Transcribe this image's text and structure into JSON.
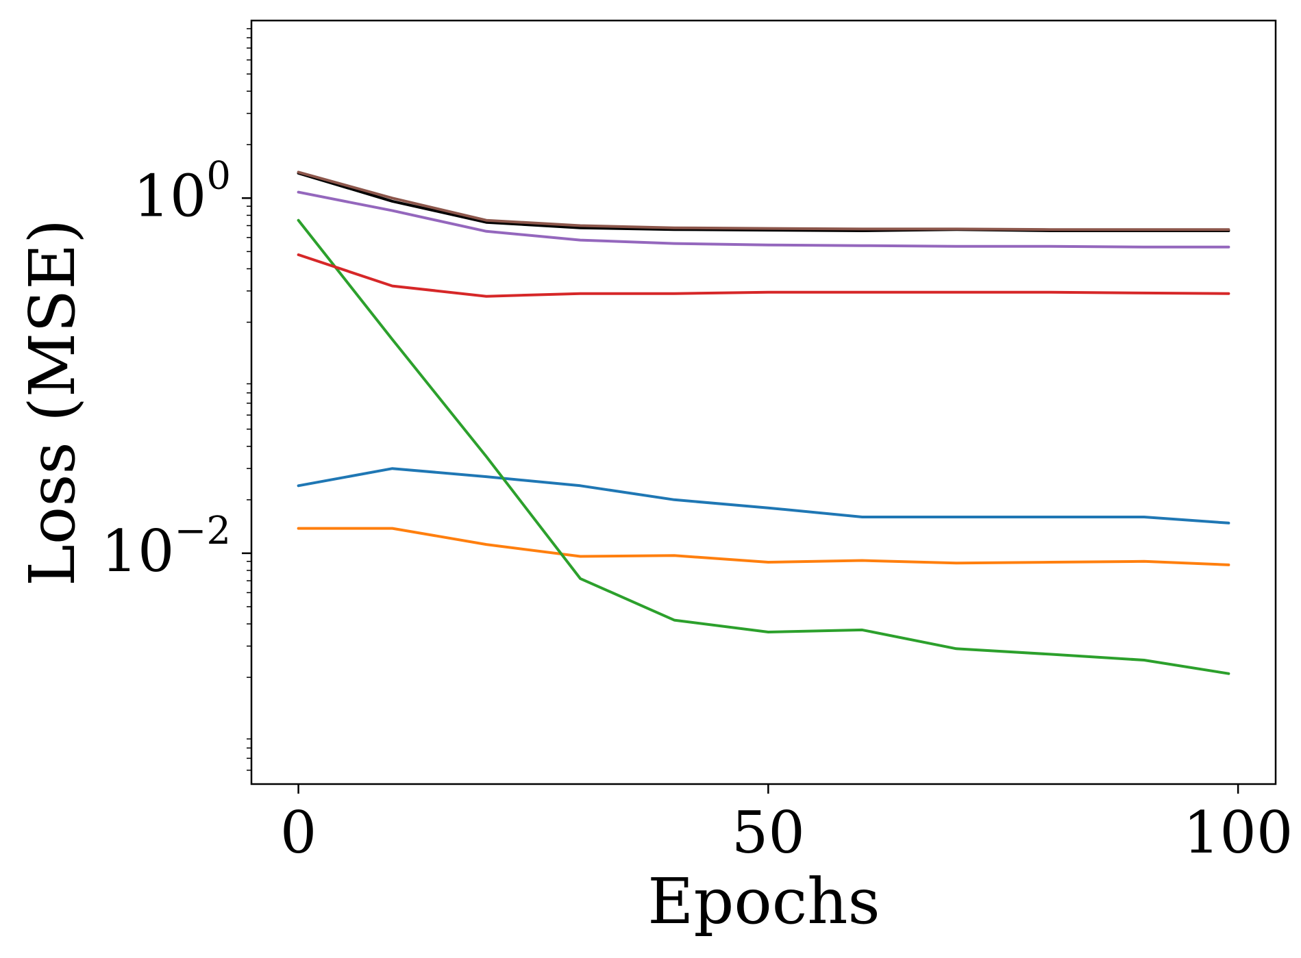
{
  "chart_data": {
    "type": "line",
    "title": "",
    "xlabel": "Epochs",
    "ylabel": "Loss (MSE)",
    "xscale": "linear",
    "yscale": "log",
    "xlim": [
      -5,
      104
    ],
    "ylim_exp": [
      -3.3,
      1.0
    ],
    "grid": false,
    "legend": "none",
    "xticks": [
      {
        "value": 0,
        "label": "0"
      },
      {
        "value": 50,
        "label": "50"
      },
      {
        "value": 100,
        "label": "100"
      }
    ],
    "yticks": [
      {
        "exp": 0,
        "base": "10",
        "sup": "0"
      },
      {
        "exp": -2,
        "base": "10",
        "sup": "−2"
      }
    ],
    "x": [
      0,
      10,
      20,
      30,
      40,
      50,
      60,
      70,
      80,
      90,
      99
    ],
    "series": [
      {
        "name": "blue",
        "color": "#1f77b4",
        "values": [
          0.024,
          0.03,
          0.027,
          0.024,
          0.02,
          0.018,
          0.016,
          0.016,
          0.016,
          0.016,
          0.0148
        ]
      },
      {
        "name": "orange",
        "color": "#ff7f0e",
        "values": [
          0.0138,
          0.0138,
          0.0112,
          0.0096,
          0.0097,
          0.0089,
          0.0091,
          0.0088,
          0.0089,
          0.009,
          0.0086
        ]
      },
      {
        "name": "green",
        "color": "#2ca02c",
        "values": [
          0.75,
          0.16,
          0.035,
          0.0072,
          0.0042,
          0.0036,
          0.0037,
          0.0029,
          0.0027,
          0.0025,
          0.0021
        ]
      },
      {
        "name": "red",
        "color": "#d62728",
        "values": [
          0.48,
          0.32,
          0.28,
          0.29,
          0.29,
          0.295,
          0.295,
          0.295,
          0.295,
          0.292,
          0.29
        ]
      },
      {
        "name": "purple",
        "color": "#9467bd",
        "values": [
          1.08,
          0.85,
          0.65,
          0.58,
          0.555,
          0.545,
          0.54,
          0.535,
          0.535,
          0.53,
          0.53
        ]
      },
      {
        "name": "black",
        "color": "#000000",
        "values": [
          1.38,
          0.96,
          0.73,
          0.68,
          0.665,
          0.66,
          0.655,
          0.665,
          0.655,
          0.655,
          0.655
        ]
      },
      {
        "name": "brown",
        "color": "#8c564b",
        "values": [
          1.4,
          1.0,
          0.75,
          0.7,
          0.68,
          0.675,
          0.67,
          0.67,
          0.665,
          0.665,
          0.665
        ]
      }
    ]
  }
}
